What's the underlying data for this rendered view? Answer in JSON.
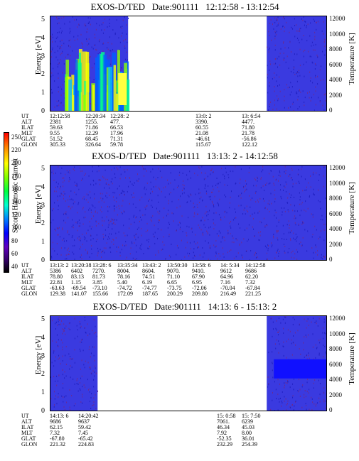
{
  "colorbar": {
    "title": "Second Harmonic Current",
    "ticks": [
      "250",
      "220",
      "200",
      "180",
      "160",
      "140",
      "120",
      "100",
      "80",
      "60",
      "40"
    ],
    "colors": [
      "#ff0000",
      "#ffff00",
      "#00ff40",
      "#00ffd0",
      "#0000ff",
      "#300060",
      "#000000"
    ]
  },
  "axis_labels": {
    "left": "Energy [eV]",
    "right": "Temperature [K]"
  },
  "row_labels": [
    "UT",
    "ALT",
    "ILAT",
    "MLT",
    "GLAT",
    "GLON"
  ],
  "chart_data": [
    {
      "type": "heatmap",
      "title": "EXOS-D/TED   Date:901111   12:12:58 - 13:12:54",
      "ylabel": "Energy [eV]",
      "ylabel_right": "Temperature [K]",
      "ylim": [
        0,
        5
      ],
      "ylim_right": [
        0,
        12000
      ],
      "yticks": [
        "0",
        "1",
        "2",
        "3",
        "4",
        "5"
      ],
      "yticks_right": [
        "0",
        "2000",
        "4000",
        "6000",
        "8000",
        "10000",
        "12000"
      ],
      "ephemeris": [
        [
          "12:12:58",
          "2381",
          "59.63",
          "9.55",
          "51.52",
          "305.33"
        ],
        [
          "12:20:34",
          "1255.",
          "71.86",
          "12.29",
          "68.45",
          "326.64"
        ],
        [
          "12:28: 2",
          "477.",
          "66.53",
          "17.96",
          "71.31",
          "59.78"
        ],
        [
          "13:0: 2",
          "3390.",
          "60.55",
          "21.08",
          "-46.61",
          "115.67"
        ],
        [
          "13: 6:54",
          "4477.",
          "71.80",
          "21.78",
          "-56.86",
          "122.12"
        ]
      ],
      "data_coverage": [
        [
          0.0,
          0.28
        ],
        [
          0.78,
          1.0
        ]
      ]
    },
    {
      "type": "heatmap",
      "title": "EXOS-D/TED   Date:901111   13:13: 2 - 14:12:58",
      "ylabel": "Energy [eV]",
      "ylabel_right": "Temperature [K]",
      "ylim": [
        0,
        5
      ],
      "ylim_right": [
        0,
        12000
      ],
      "yticks": [
        "0",
        "1",
        "2",
        "3",
        "4",
        "5"
      ],
      "yticks_right": [
        "0",
        "2000",
        "4000",
        "6000",
        "8000",
        "10000",
        "12000"
      ],
      "ephemeris": [
        [
          "13:13: 2",
          "5386",
          "78.80",
          "22.81",
          "-63.63",
          "129.38"
        ],
        [
          "13:20:38",
          "6402",
          "83.13",
          "1.15",
          "-69.54",
          "141.07"
        ],
        [
          "13:28: 6",
          "7270.",
          "81.73",
          "3.85",
          "-73.10",
          "155.66"
        ],
        [
          "13:35:34",
          "8004.",
          "78.16",
          "5.40",
          "-74.72",
          "172.09"
        ],
        [
          "13:43: 2",
          "8604.",
          "74.51",
          "6.19",
          "-74.77",
          "187.65"
        ],
        [
          "13:50:30",
          "9070.",
          "71.10",
          "6.65",
          "-73.75",
          "200.29"
        ],
        [
          "13:58: 6",
          "9410.",
          "67.90",
          "6.95",
          "-72.06",
          "209.80"
        ],
        [
          "14: 5:34",
          "9612",
          "64.96",
          "7.16",
          "-70.04",
          "216.49"
        ],
        [
          "14:12:58",
          "9686",
          "62.20",
          "7.32",
          "-67.84",
          "221.25"
        ]
      ],
      "data_coverage": [
        [
          0.0,
          1.0
        ]
      ]
    },
    {
      "type": "heatmap",
      "title": "EXOS-D/TED   Date:901111   14:13: 6 - 15:13: 2",
      "ylabel": "Energy [eV]",
      "ylabel_right": "Temperature [K]",
      "ylim": [
        0,
        5
      ],
      "ylim_right": [
        0,
        12000
      ],
      "yticks": [
        "0",
        "1",
        "2",
        "3",
        "4",
        "5"
      ],
      "yticks_right": [
        "0",
        "2000",
        "4000",
        "6000",
        "8000",
        "10000",
        "12000"
      ],
      "ephemeris": [
        [
          "14:13: 6",
          "9686",
          "62.15",
          "7.32",
          "-67.80",
          "221.32"
        ],
        [
          "14:20:42",
          "9637",
          "59.42",
          "7.45",
          "-65.42",
          "224.83"
        ],
        [
          "15: 0:58",
          "7061.",
          "46.34",
          "7.92",
          "-52.35",
          "232.29"
        ],
        [
          "15: 7:50",
          "6239",
          "45.03",
          "8.00",
          "36.01",
          "254.39"
        ]
      ],
      "data_coverage": [
        [
          0.0,
          0.17
        ],
        [
          0.78,
          1.0
        ]
      ]
    }
  ]
}
